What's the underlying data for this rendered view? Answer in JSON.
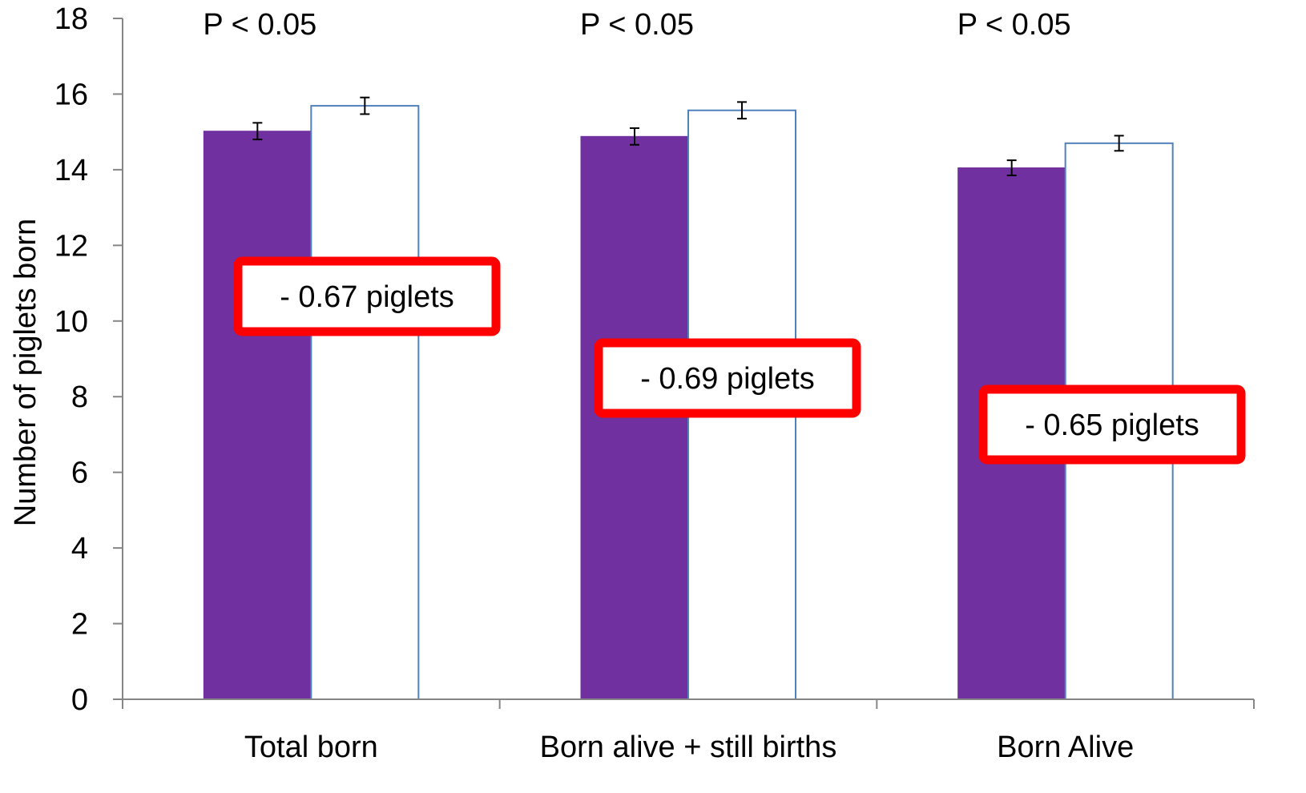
{
  "chart_data": {
    "type": "bar",
    "title": "",
    "xlabel": "",
    "ylabel": "Number of piglets born",
    "ylim": [
      0,
      18
    ],
    "yticks": [
      0,
      2,
      4,
      6,
      8,
      10,
      12,
      14,
      16,
      18
    ],
    "categories": [
      "Total born",
      "Born alive + still births",
      "Born Alive"
    ],
    "series": [
      {
        "values": [
          15.02,
          14.88,
          14.05
        ],
        "errors": [
          0.22,
          0.22,
          0.2
        ],
        "fill": "#7030a0",
        "stroke": "#7030a0"
      },
      {
        "values": [
          15.69,
          15.57,
          14.7
        ],
        "errors": [
          0.22,
          0.22,
          0.2
        ],
        "fill": "#ffffff",
        "stroke": "#4f81bd"
      }
    ],
    "p_values": [
      "P < 0.05",
      "P < 0.05",
      "P < 0.05"
    ],
    "annotations": [
      "- 0.67 piglets",
      "- 0.69 piglets",
      "- 0.65 piglets"
    ],
    "annotation_border_color": "#ff0000",
    "grid": false,
    "legend": "none"
  }
}
